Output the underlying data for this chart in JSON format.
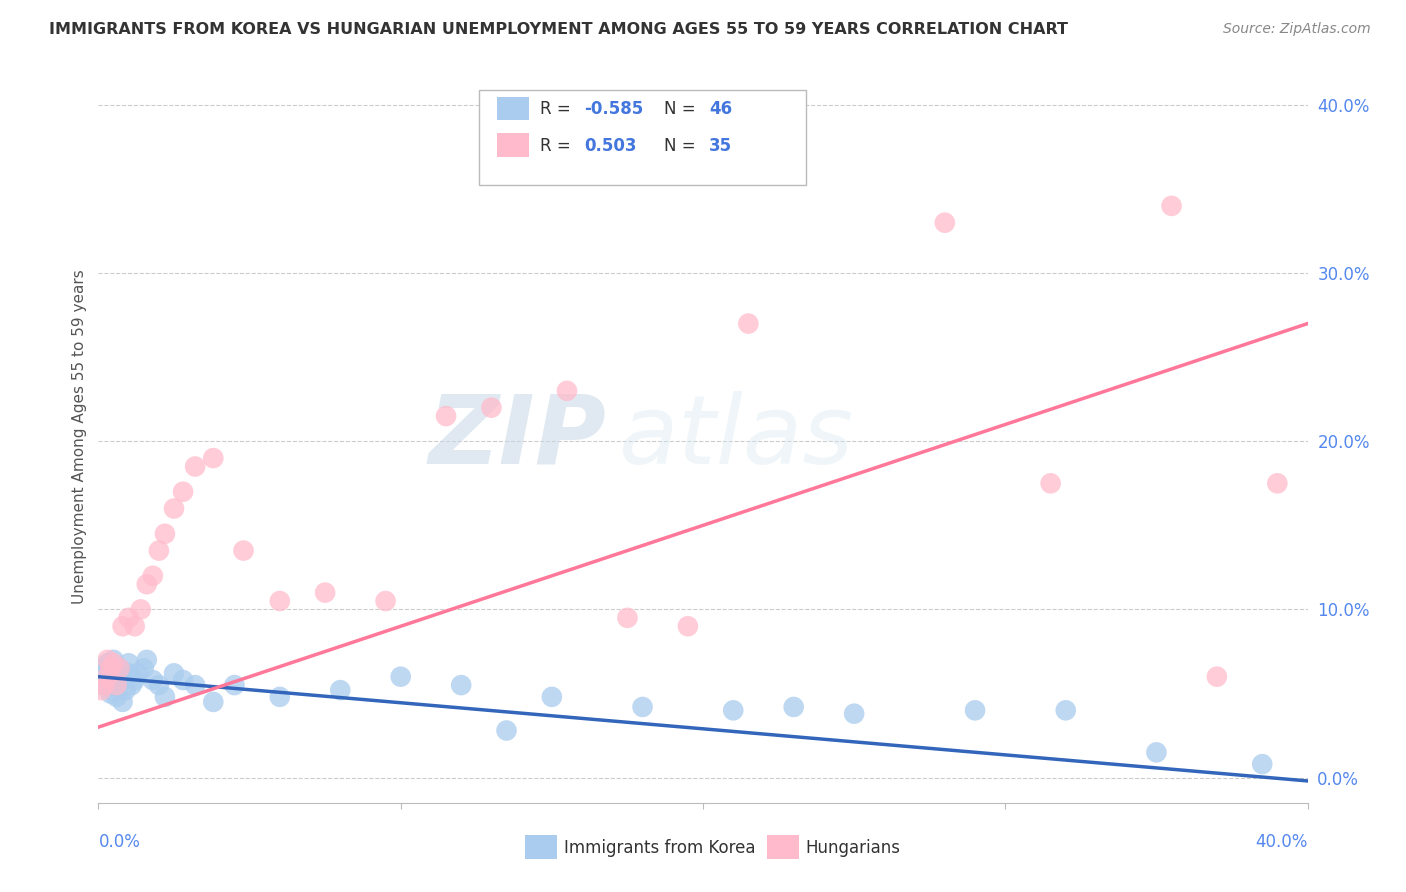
{
  "title": "IMMIGRANTS FROM KOREA VS HUNGARIAN UNEMPLOYMENT AMONG AGES 55 TO 59 YEARS CORRELATION CHART",
  "source": "Source: ZipAtlas.com",
  "ylabel": "Unemployment Among Ages 55 to 59 years",
  "ytick_values": [
    0.0,
    0.1,
    0.2,
    0.3,
    0.4
  ],
  "xlim": [
    0.0,
    0.4
  ],
  "ylim": [
    -0.015,
    0.42
  ],
  "korea_color": "#AACCEE",
  "hungarian_color": "#FFBBCC",
  "korea_line_color": "#3366BB",
  "hungarian_line_color": "#FF7799",
  "watermark_zip": "ZIP",
  "watermark_atlas": "atlas",
  "background_color": "#FFFFFF",
  "korea_x": [
    0.001,
    0.002,
    0.002,
    0.003,
    0.003,
    0.004,
    0.004,
    0.005,
    0.005,
    0.005,
    0.006,
    0.006,
    0.007,
    0.007,
    0.008,
    0.008,
    0.009,
    0.01,
    0.01,
    0.011,
    0.012,
    0.013,
    0.015,
    0.016,
    0.018,
    0.02,
    0.022,
    0.025,
    0.028,
    0.032,
    0.038,
    0.045,
    0.06,
    0.08,
    0.1,
    0.12,
    0.135,
    0.15,
    0.18,
    0.21,
    0.23,
    0.25,
    0.29,
    0.32,
    0.35,
    0.385
  ],
  "korea_y": [
    0.055,
    0.06,
    0.065,
    0.058,
    0.068,
    0.05,
    0.062,
    0.055,
    0.07,
    0.058,
    0.062,
    0.048,
    0.06,
    0.065,
    0.045,
    0.058,
    0.052,
    0.062,
    0.068,
    0.055,
    0.058,
    0.062,
    0.065,
    0.07,
    0.058,
    0.055,
    0.048,
    0.062,
    0.058,
    0.055,
    0.045,
    0.055,
    0.048,
    0.052,
    0.06,
    0.055,
    0.028,
    0.048,
    0.042,
    0.04,
    0.042,
    0.038,
    0.04,
    0.04,
    0.015,
    0.008
  ],
  "hungarian_x": [
    0.001,
    0.002,
    0.003,
    0.003,
    0.004,
    0.005,
    0.006,
    0.007,
    0.008,
    0.01,
    0.012,
    0.014,
    0.016,
    0.018,
    0.02,
    0.022,
    0.025,
    0.028,
    0.032,
    0.038,
    0.048,
    0.06,
    0.075,
    0.095,
    0.115,
    0.13,
    0.155,
    0.175,
    0.195,
    0.215,
    0.28,
    0.315,
    0.355,
    0.37,
    0.39
  ],
  "hungarian_y": [
    0.052,
    0.055,
    0.06,
    0.07,
    0.065,
    0.068,
    0.055,
    0.065,
    0.09,
    0.095,
    0.09,
    0.1,
    0.115,
    0.12,
    0.135,
    0.145,
    0.16,
    0.17,
    0.185,
    0.19,
    0.135,
    0.105,
    0.11,
    0.105,
    0.215,
    0.22,
    0.23,
    0.095,
    0.09,
    0.27,
    0.33,
    0.175,
    0.34,
    0.06,
    0.175
  ],
  "korea_line_x0": 0.0,
  "korea_line_y0": 0.06,
  "korea_line_x1": 0.4,
  "korea_line_y1": -0.002,
  "hung_line_x0": 0.0,
  "hung_line_y0": 0.03,
  "hung_line_x1": 0.4,
  "hung_line_y1": 0.27
}
